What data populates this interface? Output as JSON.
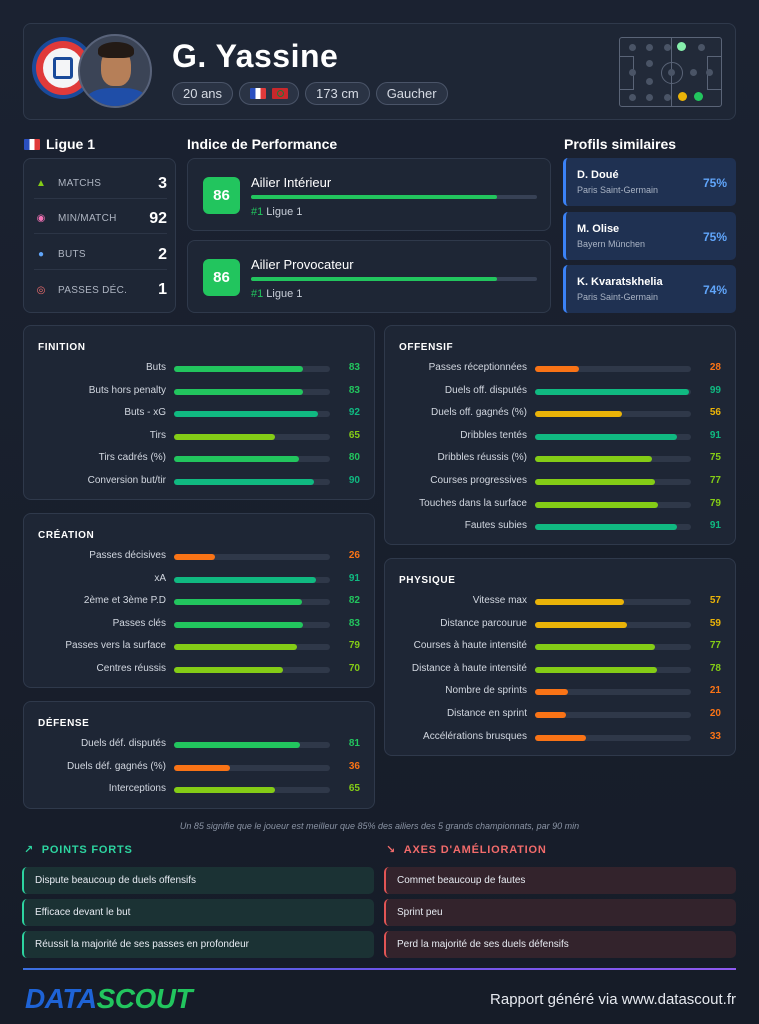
{
  "header": {
    "name": "G. Yassine",
    "age": "20 ans",
    "height": "173 cm",
    "foot": "Gaucher",
    "nationalities": [
      "fr-flag-icon",
      "ma-flag-icon"
    ]
  },
  "league": {
    "title": "Ligue 1",
    "stats": [
      {
        "icon": "jersey-icon",
        "label": "MATCHS",
        "value": "3"
      },
      {
        "icon": "clock-icon",
        "label": "MIN/MATCH",
        "value": "92"
      },
      {
        "icon": "ball-icon",
        "label": "BUTS",
        "value": "2"
      },
      {
        "icon": "target-icon",
        "label": "PASSES DÉC.",
        "value": "1"
      }
    ]
  },
  "performance": {
    "title": "Indice de Performance",
    "items": [
      {
        "score": "86",
        "role": "Ailier Intérieur",
        "rank_prefix": "#1",
        "rank_suffix": " Ligue 1",
        "fill": 0.86
      },
      {
        "score": "86",
        "role": "Ailier Provocateur",
        "rank_prefix": "#1",
        "rank_suffix": " Ligue 1",
        "fill": 0.86
      }
    ]
  },
  "similar": {
    "title": "Profils similaires",
    "items": [
      {
        "name": "D. Doué",
        "club": "Paris Saint-Germain",
        "pct": "75%"
      },
      {
        "name": "M. Olise",
        "club": "Bayern München",
        "pct": "75%"
      },
      {
        "name": "K. Kvaratskhelia",
        "club": "Paris Saint-Germain",
        "pct": "74%"
      }
    ]
  },
  "panels": {
    "finition": {
      "title": "FINITION",
      "rows": [
        {
          "label": "Buts",
          "value": 83
        },
        {
          "label": "Buts hors penalty",
          "value": 83
        },
        {
          "label": "Buts - xG",
          "value": 92
        },
        {
          "label": "Tirs",
          "value": 65
        },
        {
          "label": "Tirs cadrés (%)",
          "value": 80
        },
        {
          "label": "Conversion but/tir",
          "value": 90
        }
      ]
    },
    "creation": {
      "title": "CRÉATION",
      "rows": [
        {
          "label": "Passes décisives",
          "value": 26
        },
        {
          "label": "xA",
          "value": 91
        },
        {
          "label": "2ème et 3ème P.D",
          "value": 82
        },
        {
          "label": "Passes clés",
          "value": 83
        },
        {
          "label": "Passes vers la surface",
          "value": 79
        },
        {
          "label": "Centres réussis",
          "value": 70
        }
      ]
    },
    "defense": {
      "title": "DÉFENSE",
      "rows": [
        {
          "label": "Duels déf. disputés",
          "value": 81
        },
        {
          "label": "Duels déf. gagnés (%)",
          "value": 36
        },
        {
          "label": "Interceptions",
          "value": 65
        }
      ]
    },
    "offensif": {
      "title": "OFFENSIF",
      "rows": [
        {
          "label": "Passes réceptionnées",
          "value": 28
        },
        {
          "label": "Duels off. disputés",
          "value": 99
        },
        {
          "label": "Duels off. gagnés (%)",
          "value": 56
        },
        {
          "label": "Dribbles tentés",
          "value": 91
        },
        {
          "label": "Dribbles réussis (%)",
          "value": 75
        },
        {
          "label": "Courses progressives",
          "value": 77
        },
        {
          "label": "Touches dans la surface",
          "value": 79
        },
        {
          "label": "Fautes subies",
          "value": 91
        }
      ]
    },
    "physique": {
      "title": "PHYSIQUE",
      "rows": [
        {
          "label": "Vitesse max",
          "value": 57
        },
        {
          "label": "Distance parcourue",
          "value": 59
        },
        {
          "label": "Courses à haute intensité",
          "value": 77
        },
        {
          "label": "Distance à haute intensité",
          "value": 78
        },
        {
          "label": "Nombre de sprints",
          "value": 21
        },
        {
          "label": "Distance en sprint",
          "value": 20
        },
        {
          "label": "Accélérations brusques",
          "value": 33
        }
      ]
    }
  },
  "footnote": "Un 85 signifie que le joueur est meilleur que 85% des ailiers des 5 grands championnats, par 90 min",
  "strengths": {
    "title": "POINTS FORTS",
    "items": [
      "Dispute beaucoup de duels offensifs",
      "Efficace devant le but",
      "Réussit la majorité de ses passes en profondeur"
    ]
  },
  "weaknesses": {
    "title": "AXES D'AMÉLIORATION",
    "items": [
      "Commet beaucoup de fautes",
      "Sprint peu",
      "Perd la majorité de ses duels défensifs"
    ]
  },
  "footer": {
    "brand_part1": "DATA",
    "brand_part2": "SCOUT",
    "report": "Rapport généré via www.datascout.fr"
  },
  "colors": {
    "elite": "#10b981",
    "very_good": "#22c55e",
    "good": "#84cc16",
    "average": "#eab308",
    "low": "#f97316",
    "accent_blue": "#3b82f6"
  }
}
